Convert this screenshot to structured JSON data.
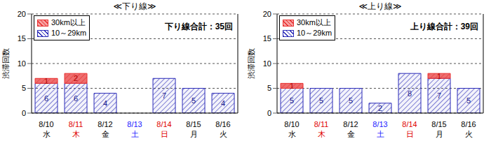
{
  "chart_data": [
    {
      "type": "bar",
      "title": "≪下り線≫",
      "y_label": "渋滞回数",
      "annotation": "下り線合計：35回",
      "categories": [
        "8/10\n水",
        "8/11\n木",
        "8/12\n金",
        "8/13\n土",
        "8/14\n日",
        "8/15\n月",
        "8/16\n火"
      ],
      "series": [
        {
          "name": "30km以上",
          "color": "#e83030",
          "values": [
            1,
            2,
            0,
            0,
            0,
            0,
            0
          ]
        },
        {
          "name": "10～29km",
          "color": "#2c2cb8",
          "values": [
            6,
            6,
            4,
            0,
            7,
            5,
            4
          ]
        }
      ],
      "stacked": true,
      "data_labels": true,
      "ylim": [
        0,
        20
      ],
      "yticks": [
        0,
        5,
        10,
        15,
        20
      ],
      "grid": true,
      "legend": "top-left"
    },
    {
      "type": "bar",
      "title": "≪上り線≫",
      "y_label": "渋滞回数",
      "annotation": "上り線合計：39回",
      "categories": [
        "8/10\n水",
        "8/11\n木",
        "8/12\n金",
        "8/13\n土",
        "8/14\n日",
        "8/15\n月",
        "8/16\n火"
      ],
      "series": [
        {
          "name": "30km以上",
          "color": "#e83030",
          "values": [
            1,
            0,
            0,
            0,
            0,
            1,
            0
          ]
        },
        {
          "name": "10～29km",
          "color": "#2c2cb8",
          "values": [
            5,
            5,
            5,
            2,
            8,
            7,
            5
          ]
        }
      ],
      "stacked": true,
      "data_labels": true,
      "ylim": [
        0,
        20
      ],
      "yticks": [
        0,
        5,
        10,
        15,
        20
      ],
      "grid": true,
      "legend": "top-left"
    }
  ]
}
